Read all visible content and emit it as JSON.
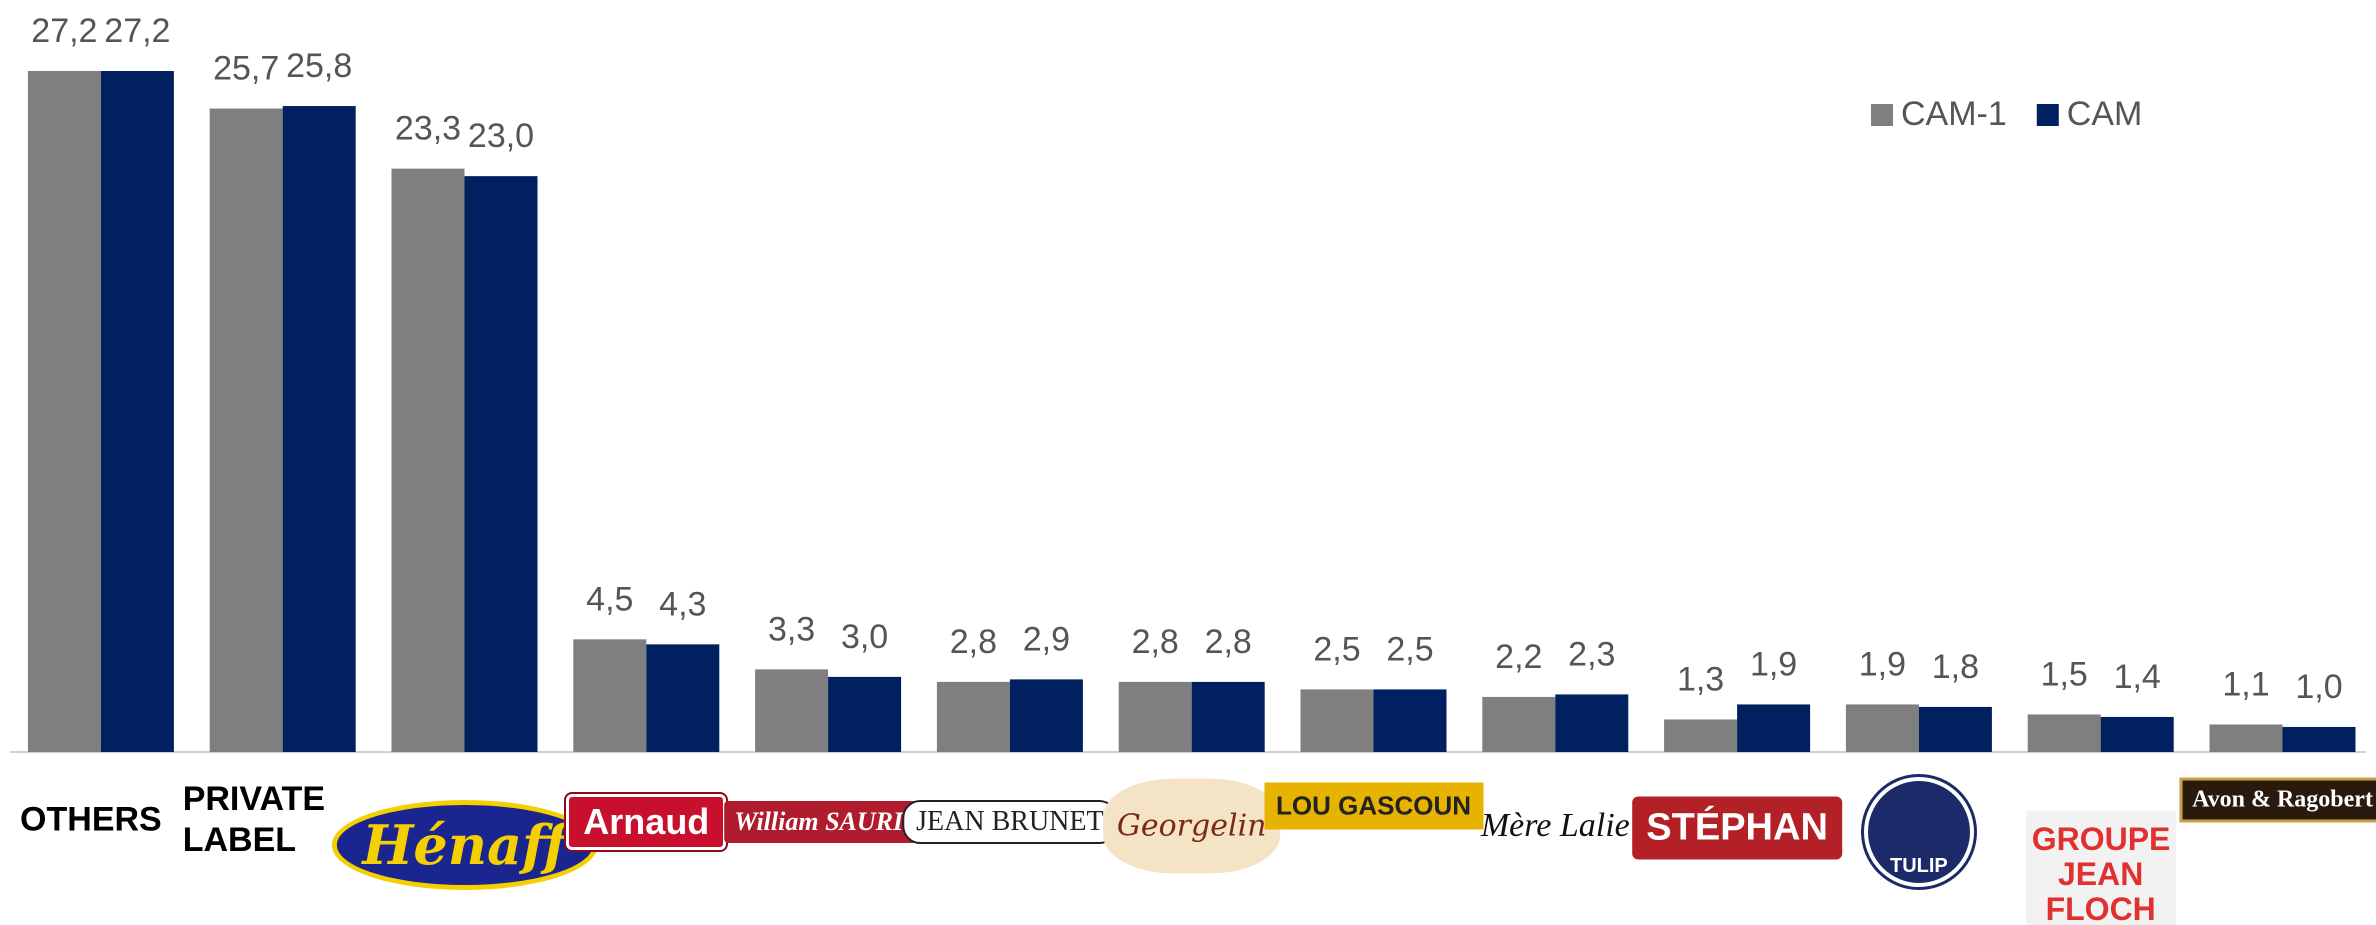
{
  "chart_data": {
    "type": "bar",
    "categories": [
      "OTHERS",
      "PRIVATE LABEL",
      "Hénaff",
      "Arnaud",
      "William SAURIN",
      "JEAN BRUNET",
      "Georgelin",
      "LOU GASCOUN",
      "Mère Lalie",
      "STÉPHAN",
      "TULIP",
      "GROUPE JEAN FLOCH",
      "Avon & Ragobert"
    ],
    "series": [
      {
        "name": "CAM-1",
        "color": "#7f7f7f",
        "values": [
          27.2,
          25.7,
          23.3,
          4.5,
          3.3,
          2.8,
          2.8,
          2.5,
          2.2,
          1.3,
          1.9,
          1.5,
          1.1
        ],
        "value_labels": [
          "27,2",
          "25,7",
          "23,3",
          "4,5",
          "3,3",
          "2,8",
          "2,8",
          "2,5",
          "2,2",
          "1,3",
          "1,9",
          "1,5",
          "1,1"
        ]
      },
      {
        "name": "CAM",
        "color": "#002060",
        "values": [
          27.2,
          25.8,
          23.0,
          4.3,
          3.0,
          2.9,
          2.8,
          2.5,
          2.3,
          1.9,
          1.8,
          1.4,
          1.0
        ],
        "value_labels": [
          "27,2",
          "25,8",
          "23,0",
          "4,3",
          "3,0",
          "2,9",
          "2,8",
          "2,5",
          "2,3",
          "1,9",
          "1,8",
          "1,4",
          "1,0"
        ]
      }
    ],
    "legend": "top-right"
  }
}
